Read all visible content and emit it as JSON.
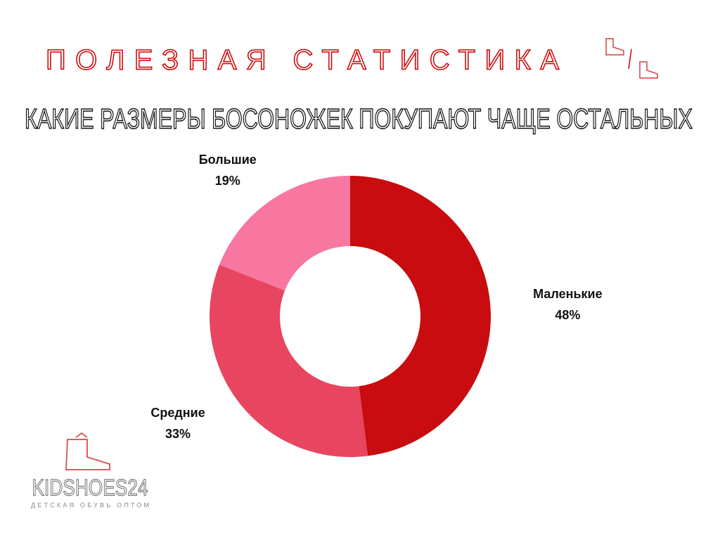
{
  "chart_data": {
    "type": "donut",
    "title": "ПОЛЕЗНАЯ СТАТИСТИКА",
    "subtitle": "КАКИЕ РАЗМЕРЫ БОСОНОЖЕК ПОКУПАЮТ ЧАЩЕ ОСТАЛЬНЫХ",
    "categories": [
      "Маленькие",
      "Средние",
      "Большие"
    ],
    "values": [
      48,
      33,
      19
    ],
    "value_labels": [
      "48%",
      "33%",
      "19%"
    ],
    "colors": [
      "#c80c0f",
      "#e84560",
      "#f877a0"
    ],
    "brand": "KIDSHOES24",
    "brand_tagline": "ДЕТСКАЯ ОБУВЬ ОПТОМ"
  }
}
